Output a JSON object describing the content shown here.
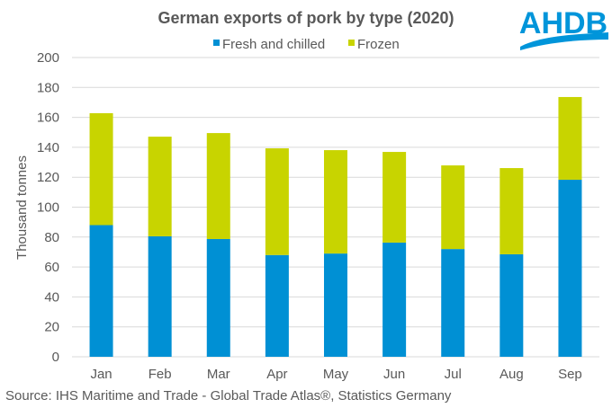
{
  "logo": {
    "text": "AHDB",
    "color": "#0095DA"
  },
  "colors": {
    "fresh": "#0090D4",
    "frozen": "#C8D400",
    "text": "#595959",
    "grid": "#D9D9D9"
  },
  "chart_data": {
    "type": "bar",
    "stacked": true,
    "title": "German exports of pork by type (2020)",
    "xlabel": "",
    "ylabel": "Thousand tonnes",
    "ylim": [
      0,
      200
    ],
    "yticks": [
      0,
      20,
      40,
      60,
      80,
      100,
      120,
      140,
      160,
      180,
      200
    ],
    "grid": true,
    "legend_position": "top",
    "categories": [
      "Jan",
      "Feb",
      "Mar",
      "Apr",
      "May",
      "Jun",
      "Jul",
      "Aug",
      "Sep"
    ],
    "series": [
      {
        "name": "Fresh and chilled",
        "color": "#0090D4",
        "values": [
          88,
          80.5,
          78.7,
          68,
          69,
          76.3,
          72,
          68.5,
          118.3
        ]
      },
      {
        "name": "Frozen",
        "color": "#C8D400",
        "values": [
          74.8,
          66.6,
          70.8,
          71.3,
          69.1,
          60.6,
          55.9,
          57.6,
          55.3
        ]
      }
    ],
    "source": "Source: IHS Maritime and Trade - Global Trade Atlas®, Statistics Germany"
  }
}
